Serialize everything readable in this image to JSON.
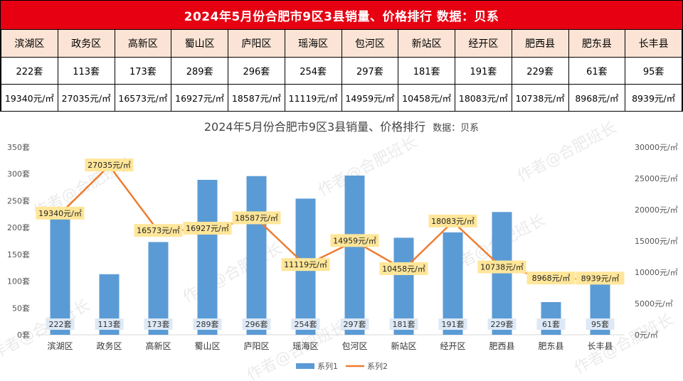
{
  "table": {
    "title": "2024年5月份合肥市9区3县销量、价格排行  数据：贝系",
    "districts": [
      "滨湖区",
      "政务区",
      "高新区",
      "蜀山区",
      "庐阳区",
      "瑶海区",
      "包河区",
      "新站区",
      "经开区",
      "肥西县",
      "肥东县",
      "长丰县"
    ],
    "sales": [
      "222套",
      "113套",
      "173套",
      "289套",
      "296套",
      "254套",
      "297套",
      "181套",
      "191套",
      "229套",
      "61套",
      "95套"
    ],
    "prices": [
      "19340元/㎡",
      "27035元/㎡",
      "16573元/㎡",
      "16927元/㎡",
      "18587元/㎡",
      "11119元/㎡",
      "14959元/㎡",
      "10458元/㎡",
      "18083元/㎡",
      "10738元/㎡",
      "8968元/㎡",
      "8939元/㎡"
    ]
  },
  "watermark": "作者@合肥班长",
  "chart_data": {
    "type": "bar+line",
    "title": "2024年5月份合肥市9区3县销量、价格排行",
    "subtitle": "数据：贝系",
    "categories": [
      "滨湖区",
      "政务区",
      "高新区",
      "蜀山区",
      "庐阳区",
      "瑶海区",
      "包河区",
      "新站区",
      "经开区",
      "肥西县",
      "肥东县",
      "长丰县"
    ],
    "series": [
      {
        "name": "系列1",
        "type": "bar",
        "axis": "left",
        "color": "#5b9bd5",
        "values": [
          222,
          113,
          173,
          289,
          296,
          254,
          297,
          181,
          191,
          229,
          61,
          95
        ],
        "labels": [
          "222套",
          "113套",
          "173套",
          "289套",
          "296套",
          "254套",
          "297套",
          "181套",
          "191套",
          "229套",
          "61套",
          "95套"
        ]
      },
      {
        "name": "系列2",
        "type": "line",
        "axis": "right",
        "color": "#ed7d31",
        "values": [
          19340,
          27035,
          16573,
          16927,
          18587,
          11119,
          14959,
          10458,
          18083,
          10738,
          8968,
          8939
        ],
        "labels": [
          "19340元/㎡",
          "27035元/㎡",
          "16573元/㎡",
          "16927元/㎡",
          "18587元/㎡",
          "11119元/㎡",
          "14959元/㎡",
          "10458元/㎡",
          "18083元/㎡",
          "10738元/㎡",
          "8968元/㎡",
          "8939元/㎡"
        ]
      }
    ],
    "y_left": {
      "range": [
        0,
        350
      ],
      "ticks": [
        "0套",
        "50套",
        "100套",
        "150套",
        "200套",
        "250套",
        "300套",
        "350套"
      ]
    },
    "y_right": {
      "range": [
        0,
        30000
      ],
      "ticks": [
        "0元/㎡",
        "5000元/㎡",
        "10000元/㎡",
        "15000元/㎡",
        "20000元/㎡",
        "25000元/㎡",
        "30000元/㎡"
      ]
    },
    "legend_position": "bottom",
    "grid": false
  }
}
